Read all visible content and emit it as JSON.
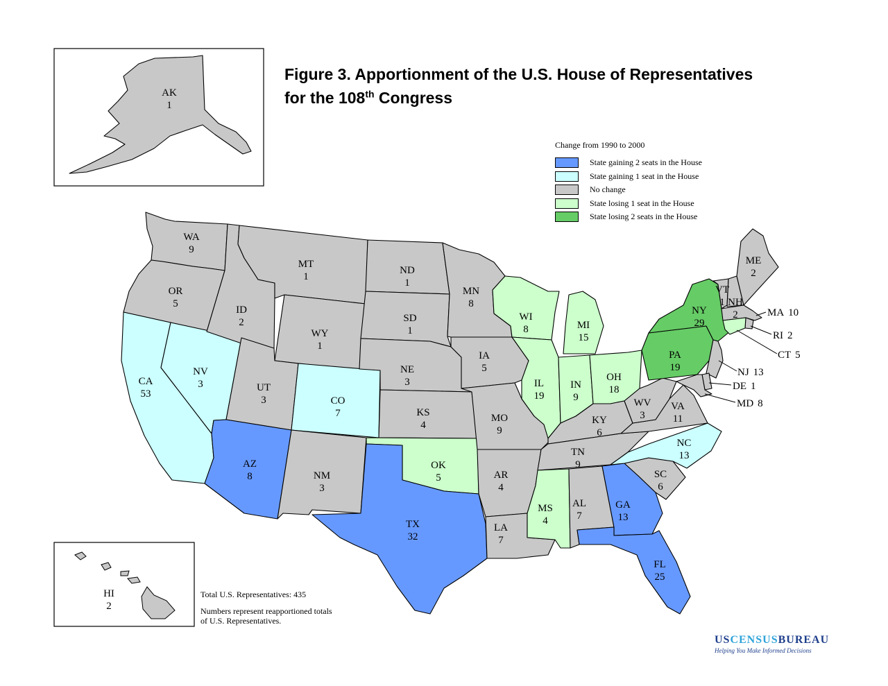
{
  "title": {
    "line1": "Figure 3. Apportionment of the U.S. House of Representatives",
    "line2_pre": "for the 108",
    "line2_sup": "th",
    "line2_post": " Congress"
  },
  "legend": {
    "title": "Change from 1990 to 2000",
    "items": [
      {
        "label": "State gaining 2 seats in the House",
        "color": "#6699ff"
      },
      {
        "label": "State gaining 1 seat in the House",
        "color": "#ccffff"
      },
      {
        "label": "No change",
        "color": "#c8c8c8"
      },
      {
        "label": "State losing 1 seat in the House",
        "color": "#ccffcc"
      },
      {
        "label": "State losing 2 seats in the House",
        "color": "#66cc66"
      }
    ]
  },
  "states": [
    {
      "abbr": "AK",
      "seats": "1"
    },
    {
      "abbr": "HI",
      "seats": "2"
    },
    {
      "abbr": "WA",
      "seats": "9"
    },
    {
      "abbr": "OR",
      "seats": "5"
    },
    {
      "abbr": "CA",
      "seats": "53"
    },
    {
      "abbr": "NV",
      "seats": "3"
    },
    {
      "abbr": "ID",
      "seats": "2"
    },
    {
      "abbr": "MT",
      "seats": "1"
    },
    {
      "abbr": "WY",
      "seats": "1"
    },
    {
      "abbr": "UT",
      "seats": "3"
    },
    {
      "abbr": "CO",
      "seats": "7"
    },
    {
      "abbr": "AZ",
      "seats": "8"
    },
    {
      "abbr": "NM",
      "seats": "3"
    },
    {
      "abbr": "ND",
      "seats": "1"
    },
    {
      "abbr": "SD",
      "seats": "1"
    },
    {
      "abbr": "NE",
      "seats": "3"
    },
    {
      "abbr": "KS",
      "seats": "4"
    },
    {
      "abbr": "OK",
      "seats": "5"
    },
    {
      "abbr": "TX",
      "seats": "32"
    },
    {
      "abbr": "MN",
      "seats": "8"
    },
    {
      "abbr": "IA",
      "seats": "5"
    },
    {
      "abbr": "MO",
      "seats": "9"
    },
    {
      "abbr": "AR",
      "seats": "4"
    },
    {
      "abbr": "LA",
      "seats": "7"
    },
    {
      "abbr": "WI",
      "seats": "8"
    },
    {
      "abbr": "IL",
      "seats": "19"
    },
    {
      "abbr": "MI",
      "seats": "15"
    },
    {
      "abbr": "IN",
      "seats": "9"
    },
    {
      "abbr": "OH",
      "seats": "18"
    },
    {
      "abbr": "KY",
      "seats": "6"
    },
    {
      "abbr": "TN",
      "seats": "9"
    },
    {
      "abbr": "MS",
      "seats": "4"
    },
    {
      "abbr": "AL",
      "seats": "7"
    },
    {
      "abbr": "GA",
      "seats": "13"
    },
    {
      "abbr": "FL",
      "seats": "25"
    },
    {
      "abbr": "SC",
      "seats": "6"
    },
    {
      "abbr": "NC",
      "seats": "13"
    },
    {
      "abbr": "VA",
      "seats": "11"
    },
    {
      "abbr": "WV",
      "seats": "3"
    },
    {
      "abbr": "PA",
      "seats": "19"
    },
    {
      "abbr": "NY",
      "seats": "29"
    },
    {
      "abbr": "VT",
      "seats": "1"
    },
    {
      "abbr": "NH",
      "seats": "2"
    },
    {
      "abbr": "ME",
      "seats": "2"
    },
    {
      "abbr": "MA",
      "seats": "10"
    },
    {
      "abbr": "RI",
      "seats": "2"
    },
    {
      "abbr": "CT",
      "seats": "5"
    },
    {
      "abbr": "NJ",
      "seats": "13"
    },
    {
      "abbr": "DE",
      "seats": "1"
    },
    {
      "abbr": "MD",
      "seats": "8"
    }
  ],
  "notes": {
    "total": "Total U.S. Representatives: 435",
    "explanation": "Numbers represent reapportioned totals of U.S. Representatives."
  },
  "logo": {
    "part1": "US",
    "part2": "CENSUS",
    "part3": "BUREAU",
    "tagline": "Helping You Make Informed Decisions"
  }
}
